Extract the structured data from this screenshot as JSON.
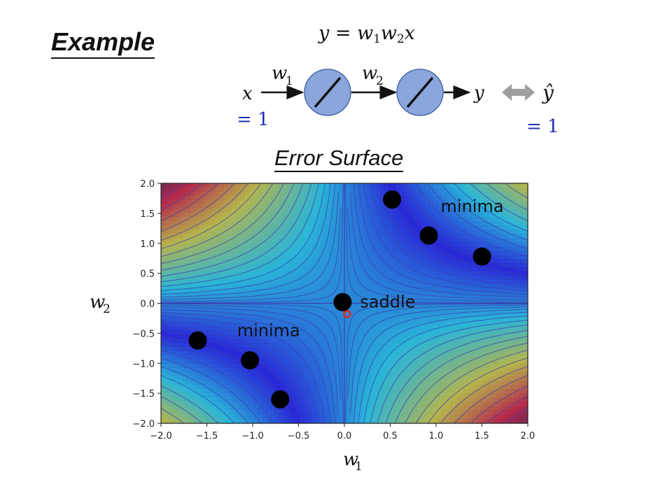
{
  "slide": {
    "title": "Example",
    "equation": {
      "y": "y",
      "eq": " = ",
      "w1": "w",
      "w1_sub": "1",
      "w2": "w",
      "w2_sub": "2",
      "x": "x"
    },
    "network": {
      "input": "x",
      "input_value": "= 1",
      "weight1": "w",
      "weight1_sub": "1",
      "weight2": "w",
      "weight2_sub": "2",
      "output": "y",
      "target": "ŷ",
      "target_value": "= 1"
    },
    "surface_title": "Error Surface"
  },
  "colors": {
    "accent_blue": "#1f2fb5",
    "neuron_fill": "#8aa6dc",
    "arrow_gray": "#9e9e9e",
    "marker_red": "#e8221b"
  },
  "chart_data": {
    "type": "contour",
    "xlabel": "w",
    "xlabel_sub": "1",
    "ylabel": "w",
    "ylabel_sub": "2",
    "xlim": [
      -2.0,
      2.0
    ],
    "ylim": [
      -2.0,
      2.0
    ],
    "xticks": [
      "−2.0",
      "−1.5",
      "−1.0",
      "−0.5",
      "0.0",
      "0.5",
      "1.0",
      "1.5",
      "2.0"
    ],
    "yticks": [
      "−2.0",
      "−1.5",
      "−1.0",
      "−0.5",
      "0.0",
      "0.5",
      "1.0",
      "1.5",
      "2.0"
    ],
    "xtick_values": [
      -2.0,
      -1.5,
      -1.0,
      -0.5,
      0.0,
      0.5,
      1.0,
      1.5,
      2.0
    ],
    "ytick_values": [
      -2.0,
      -1.5,
      -1.0,
      -0.5,
      0.0,
      0.5,
      1.0,
      1.5,
      2.0
    ],
    "function": "(1 - w1*w2)^2",
    "points": [
      {
        "x": 0.52,
        "y": 1.73
      },
      {
        "x": 0.92,
        "y": 1.13
      },
      {
        "x": 1.5,
        "y": 0.78
      },
      {
        "x": -0.02,
        "y": 0.02
      },
      {
        "x": -1.6,
        "y": -0.62
      },
      {
        "x": -1.03,
        "y": -0.95
      },
      {
        "x": -0.7,
        "y": -1.6
      }
    ],
    "marker": {
      "x": 0.03,
      "y": -0.18
    },
    "annotations": [
      {
        "text": "minima",
        "x": 1.05,
        "y": 1.52
      },
      {
        "text": "saddle",
        "x": 0.17,
        "y": -0.07
      },
      {
        "text": "minima",
        "x": -1.17,
        "y": -0.55
      }
    ]
  }
}
